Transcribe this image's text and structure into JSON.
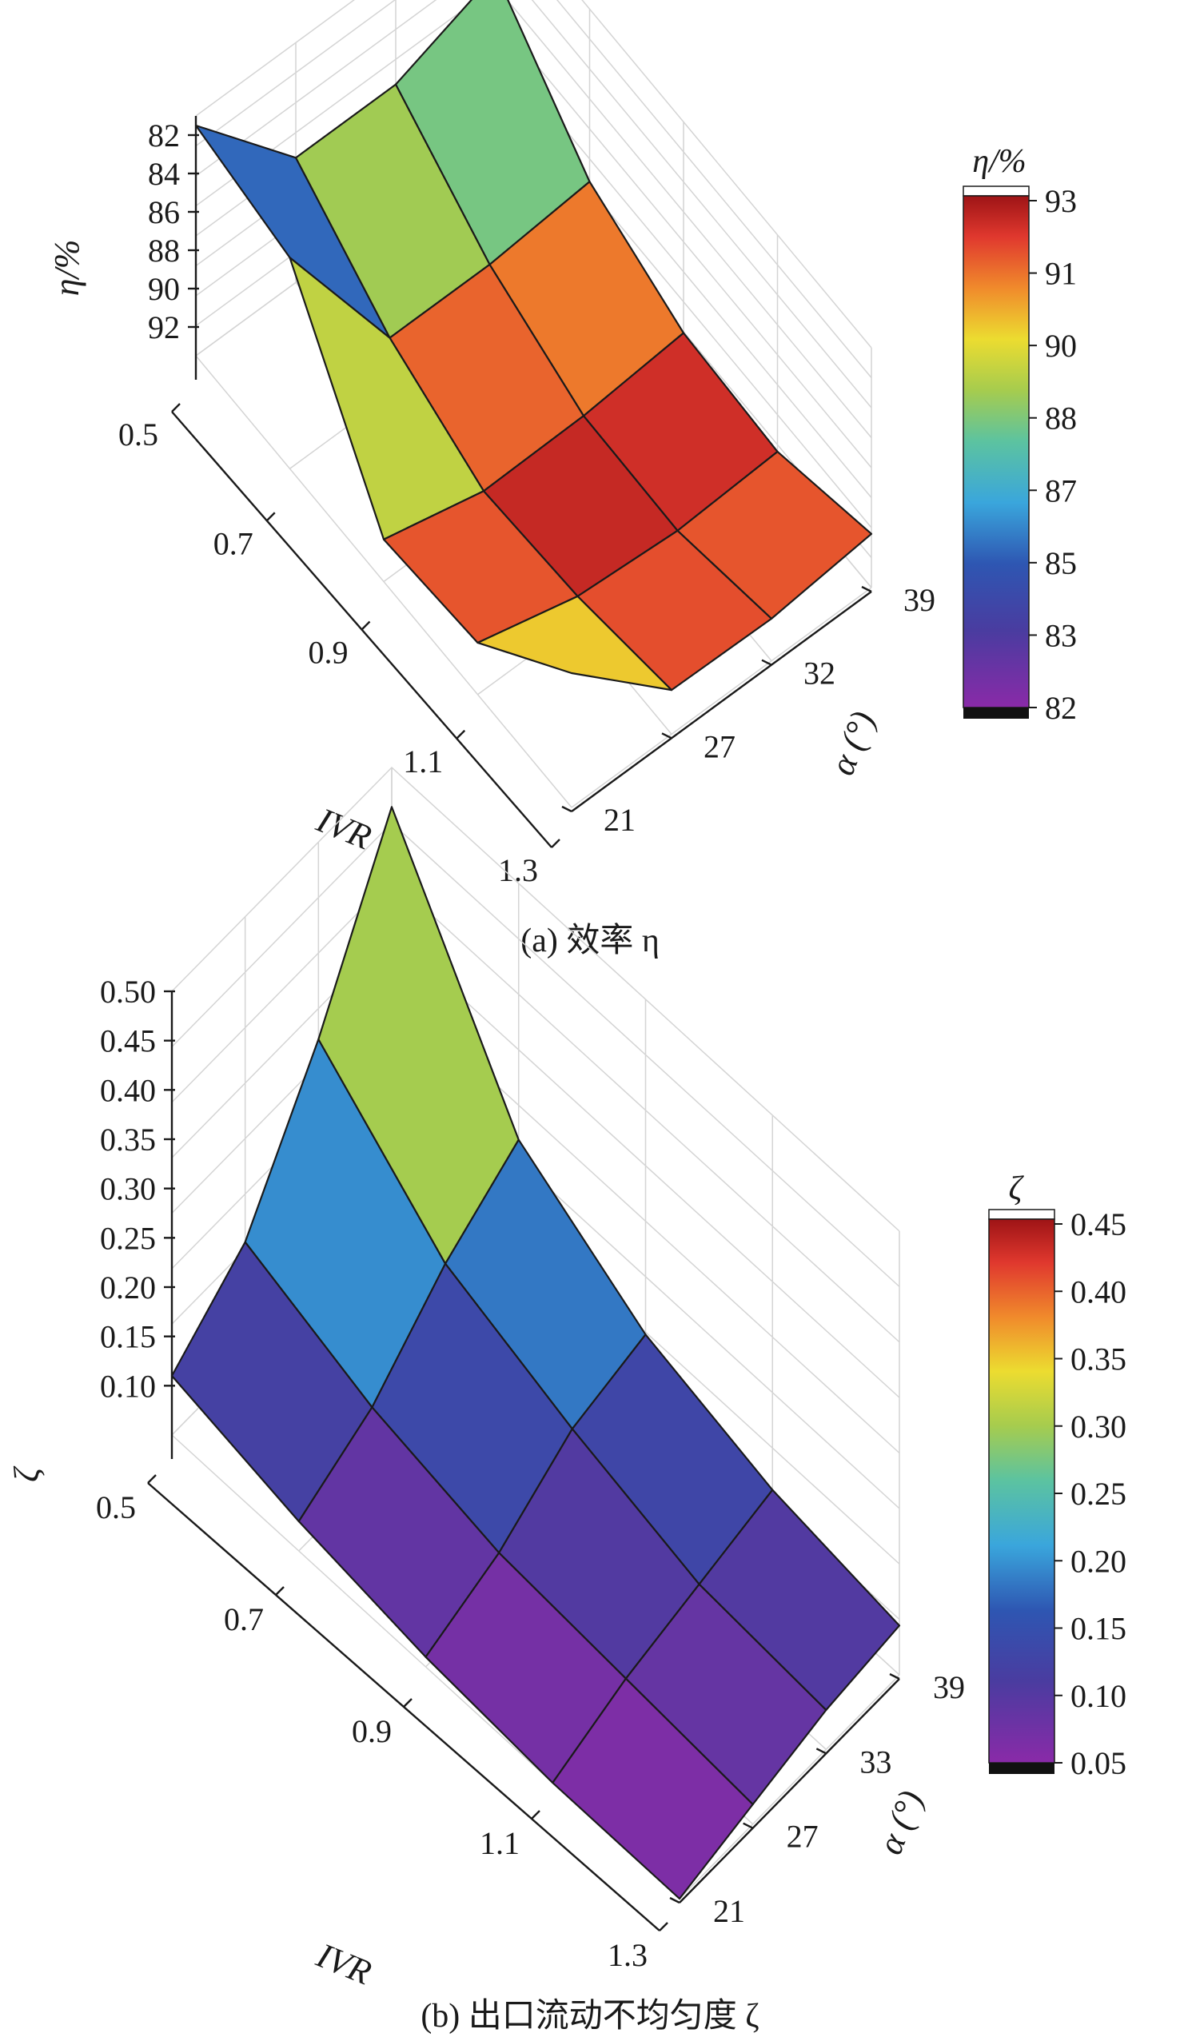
{
  "chart_data": [
    {
      "type": "surface",
      "caption": "(a) 效率 η",
      "zlabel": "η/%",
      "xlabel": "IVR",
      "ylabel": "α (°)",
      "x": [
        0.5,
        0.7,
        0.9,
        1.1,
        1.3
      ],
      "y": [
        21,
        27,
        32,
        39
      ],
      "z_ticks": [
        "82",
        "84",
        "86",
        "88",
        "90",
        "92"
      ],
      "z_axis_reversed": true,
      "zlim": [
        81,
        93.5
      ],
      "values": [
        [
          81.5,
          87.0,
          87.0,
          85.0
        ],
        [
          82.5,
          90.5,
          90.5,
          90.0
        ],
        [
          91.3,
          92.6,
          92.5,
          92.0
        ],
        [
          90.8,
          92.2,
          92.6,
          92.3
        ],
        [
          86.5,
          91.2,
          91.3,
          90.7
        ]
      ],
      "colorbar": {
        "title": "η/%",
        "ticks": [
          "93",
          "91",
          "90",
          "88",
          "87",
          "85",
          "83",
          "82"
        ]
      }
    },
    {
      "type": "surface",
      "caption": "(b) 出口流动不均匀度 ζ",
      "zlabel": "ζ",
      "xlabel": "IVR",
      "ylabel": "α (°)",
      "x": [
        0.5,
        0.7,
        0.9,
        1.1,
        1.3
      ],
      "y": [
        21,
        27,
        33,
        39
      ],
      "z_ticks": [
        "0.50",
        "0.45",
        "0.40",
        "0.35",
        "0.30",
        "0.25",
        "0.20",
        "0.15",
        "0.10"
      ],
      "zlim": [
        0.05,
        0.5
      ],
      "values": [
        [
          0.11,
          0.17,
          0.3,
          0.46
        ],
        [
          0.08,
          0.12,
          0.19,
          0.24
        ],
        [
          0.06,
          0.09,
          0.14,
          0.16
        ],
        [
          0.05,
          0.08,
          0.1,
          0.12
        ],
        [
          0.05,
          0.07,
          0.09,
          0.1
        ]
      ],
      "colorbar": {
        "title": "ζ",
        "ticks": [
          "0.45",
          "0.40",
          "0.35",
          "0.30",
          "0.25",
          "0.20",
          "0.15",
          "0.10",
          "0.05"
        ]
      }
    }
  ]
}
